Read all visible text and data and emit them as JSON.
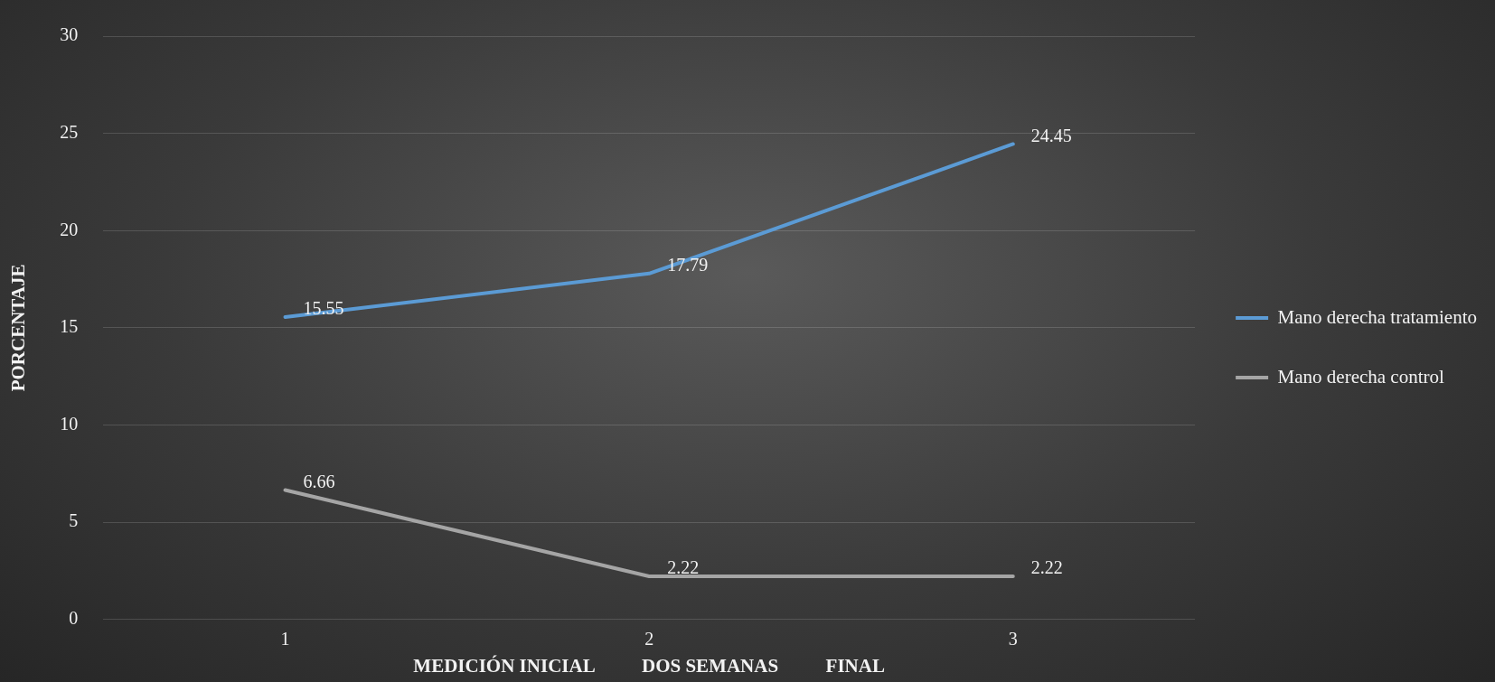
{
  "chart_data": {
    "type": "line",
    "xlabel": "MEDICIÓN INICIAL          DOS SEMANAS          FINAL",
    "ylabel": "PORCENTAJE",
    "categories": [
      "1",
      "2",
      "3"
    ],
    "series": [
      {
        "name": "Mano derecha tratamiento",
        "color": "#5b9bd5",
        "values": [
          15.55,
          17.79,
          24.45
        ]
      },
      {
        "name": "Mano derecha control",
        "color": "#a5a5a5",
        "values": [
          6.66,
          2.22,
          2.22
        ]
      }
    ],
    "ylim": [
      0,
      30
    ],
    "yticks": [
      0,
      5,
      10,
      15,
      20,
      25,
      30
    ],
    "grid": "y",
    "legend": "right",
    "data_labels": true,
    "marker": "none",
    "line_style": "solid"
  }
}
